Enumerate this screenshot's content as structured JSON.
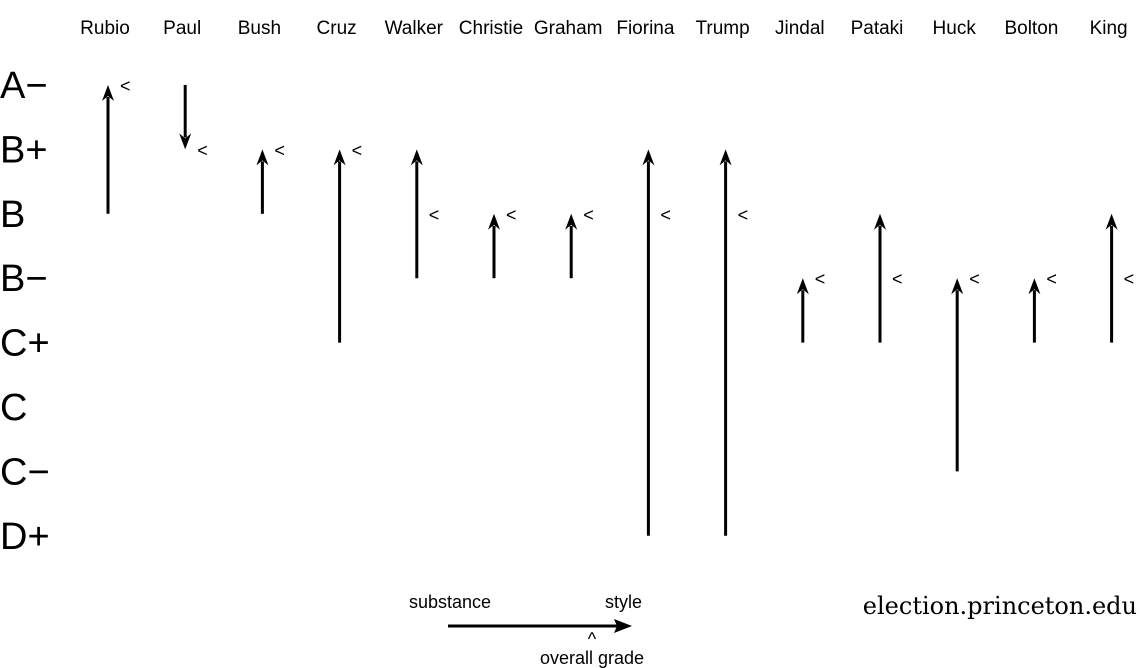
{
  "chart_data": {
    "type": "arrow-range",
    "grade_levels": [
      "A−",
      "B+",
      "B",
      "B−",
      "C+",
      "C",
      "C−",
      "D+"
    ],
    "candidates": [
      {
        "name": "Rubio",
        "substance": "B",
        "style": "A−",
        "overall": "A−"
      },
      {
        "name": "Paul",
        "substance": "A−",
        "style": "B+",
        "overall": "B+"
      },
      {
        "name": "Bush",
        "substance": "B",
        "style": "B+",
        "overall": "B+"
      },
      {
        "name": "Cruz",
        "substance": "C+",
        "style": "B+",
        "overall": "B+"
      },
      {
        "name": "Walker",
        "substance": "B−",
        "style": "B+",
        "overall": "B"
      },
      {
        "name": "Christie",
        "substance": "B−",
        "style": "B",
        "overall": "B"
      },
      {
        "name": "Graham",
        "substance": "B−",
        "style": "B",
        "overall": "B"
      },
      {
        "name": "Fiorina",
        "substance": "D+",
        "style": "B+",
        "overall": "B"
      },
      {
        "name": "Trump",
        "substance": "D+",
        "style": "B+",
        "overall": "B"
      },
      {
        "name": "Jindal",
        "substance": "C+",
        "style": "B−",
        "overall": "B−"
      },
      {
        "name": "Pataki",
        "substance": "C+",
        "style": "B",
        "overall": "B−"
      },
      {
        "name": "Huck",
        "substance": "C−",
        "style": "B−",
        "overall": "B−"
      },
      {
        "name": "Bolton",
        "substance": "C+",
        "style": "B−",
        "overall": "B−"
      },
      {
        "name": "King",
        "substance": "C+",
        "style": "B",
        "overall": "B−"
      }
    ],
    "legend": {
      "substance_label": "substance",
      "style_label": "style",
      "overall_label": "overall grade",
      "overall_marker": "<",
      "legend_caret": "^"
    },
    "source": "election.princeton.edu"
  }
}
